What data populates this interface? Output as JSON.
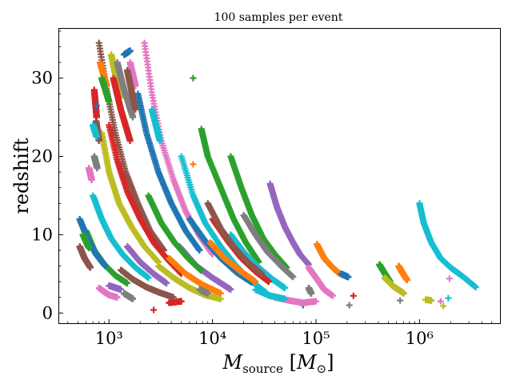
{
  "chart_data": {
    "type": "scatter",
    "title": "100 samples per event",
    "xlabel": "M_source [M_⊙]",
    "ylabel": "redshift",
    "xscale": "log",
    "xlim": [
      330,
      6000000
    ],
    "ylim": [
      -1.3,
      36.3
    ],
    "x_ticks": [
      {
        "value": 1000,
        "label": "10³"
      },
      {
        "value": 10000,
        "label": "10⁴"
      },
      {
        "value": 100000,
        "label": "10⁵"
      },
      {
        "value": 1000000,
        "label": "10⁶"
      }
    ],
    "y_ticks": [
      {
        "value": 0,
        "label": "0"
      },
      {
        "value": 10,
        "label": "10"
      },
      {
        "value": 20,
        "label": "20"
      },
      {
        "value": 30,
        "label": "30"
      }
    ],
    "grid": false,
    "legend": "none",
    "marker": "+",
    "samples_per_event": 100,
    "palette": [
      "#1f77b4",
      "#ff7f0e",
      "#2ca02c",
      "#d62728",
      "#9467bd",
      "#8c564b",
      "#e377c2",
      "#7f7f7f",
      "#bcbd22",
      "#17becf"
    ],
    "series": [
      {
        "color": "#17becf",
        "points": [
          [
            1000000,
            14.0
          ],
          [
            1100000,
            11.5
          ],
          [
            1300000,
            9.0
          ],
          [
            1600000,
            7.0
          ],
          [
            2000000,
            5.8
          ],
          [
            2600000,
            4.7
          ],
          [
            3500000,
            3.3
          ]
        ]
      },
      {
        "color": "#e377c2",
        "points": [
          [
            1950000,
            4.4
          ]
        ]
      },
      {
        "color": "#bcbd22",
        "points": [
          [
            1150000,
            1.7
          ],
          [
            1300000,
            1.6
          ]
        ]
      },
      {
        "color": "#17becf",
        "points": [
          [
            1900000,
            1.9
          ]
        ]
      },
      {
        "color": "#e377c2",
        "points": [
          [
            1600000,
            1.5
          ]
        ]
      },
      {
        "color": "#bcbd22",
        "points": [
          [
            1700000,
            0.9
          ]
        ]
      },
      {
        "color": "#ff7f0e",
        "points": [
          [
            630000,
            6.0
          ],
          [
            680000,
            5.2
          ],
          [
            760000,
            4.2
          ]
        ]
      },
      {
        "color": "#2ca02c",
        "points": [
          [
            410000,
            6.2
          ],
          [
            460000,
            5.1
          ],
          [
            520000,
            4.0
          ]
        ]
      },
      {
        "color": "#bcbd22",
        "points": [
          [
            460000,
            4.5
          ],
          [
            560000,
            3.4
          ],
          [
            710000,
            2.5
          ]
        ]
      },
      {
        "color": "#7f7f7f",
        "points": [
          [
            650000,
            1.6
          ]
        ]
      },
      {
        "color": "#9467bd",
        "points": [
          [
            36000,
            16.5
          ],
          [
            42000,
            13.5
          ],
          [
            50000,
            11.0
          ],
          [
            60000,
            9.0
          ],
          [
            70000,
            7.5
          ],
          [
            85000,
            6.2
          ]
        ]
      },
      {
        "color": "#ff7f0e",
        "points": [
          [
            102000,
            8.8
          ],
          [
            120000,
            7.0
          ],
          [
            145000,
            5.8
          ],
          [
            170000,
            5.0
          ]
        ]
      },
      {
        "color": "#1f77b4",
        "points": [
          [
            175000,
            5.0
          ],
          [
            205000,
            4.6
          ]
        ]
      },
      {
        "color": "#2ca02c",
        "points": [
          [
            15000,
            20.0
          ],
          [
            19000,
            16.0
          ],
          [
            24000,
            12.5
          ],
          [
            31000,
            9.5
          ],
          [
            40000,
            7.5
          ],
          [
            52000,
            5.8
          ]
        ]
      },
      {
        "color": "#2ca02c",
        "points": [
          [
            6500,
            30.0
          ]
        ]
      },
      {
        "color": "#2ca02c",
        "points": [
          [
            7800,
            23.5
          ],
          [
            9000,
            20.0
          ],
          [
            12000,
            16.0
          ],
          [
            16000,
            12.0
          ],
          [
            21000,
            9.0
          ],
          [
            28000,
            6.5
          ]
        ]
      },
      {
        "color": "#e377c2",
        "points": [
          [
            85000,
            5.8
          ],
          [
            100000,
            4.5
          ],
          [
            120000,
            3.0
          ],
          [
            145000,
            2.2
          ]
        ]
      },
      {
        "color": "#d62728",
        "points": [
          [
            230000,
            2.2
          ]
        ]
      },
      {
        "color": "#7f7f7f",
        "points": [
          [
            210000,
            1.0
          ]
        ]
      },
      {
        "color": "#7f7f7f",
        "points": [
          [
            85000,
            3.2
          ],
          [
            90000,
            2.5
          ]
        ]
      },
      {
        "color": "#1f77b4",
        "points": [
          [
            75000,
            1.0
          ]
        ]
      },
      {
        "color": "#17becf",
        "points": [
          [
            5000,
            20.0
          ],
          [
            6500,
            15.0
          ],
          [
            8500,
            11.5
          ],
          [
            12000,
            8.5
          ],
          [
            17000,
            6.0
          ],
          [
            24000,
            4.0
          ],
          [
            33000,
            2.6
          ]
        ]
      },
      {
        "color": "#e377c2",
        "points": [
          [
            2200,
            34.5
          ],
          [
            2600,
            28.0
          ],
          [
            3200,
            22.0
          ],
          [
            4200,
            17.0
          ],
          [
            5500,
            13.0
          ],
          [
            7500,
            9.8
          ],
          [
            10000,
            7.5
          ]
        ]
      },
      {
        "color": "#1f77b4",
        "points": [
          [
            1900,
            28.0
          ],
          [
            2300,
            23.0
          ],
          [
            3000,
            18.0
          ],
          [
            4000,
            14.0
          ],
          [
            5500,
            10.5
          ],
          [
            7500,
            8.0
          ]
        ]
      },
      {
        "color": "#8c564b",
        "points": [
          [
            800,
            34.5
          ],
          [
            950,
            28.5
          ],
          [
            1150,
            23.0
          ],
          [
            1450,
            18.0
          ],
          [
            1900,
            14.0
          ],
          [
            2500,
            10.5
          ],
          [
            3400,
            8.0
          ]
        ]
      },
      {
        "color": "#d62728",
        "points": [
          [
            1000,
            24.0
          ],
          [
            1200,
            19.5
          ],
          [
            1500,
            15.5
          ],
          [
            2000,
            12.0
          ],
          [
            2700,
            9.0
          ],
          [
            3700,
            6.8
          ],
          [
            5000,
            5.0
          ]
        ]
      },
      {
        "color": "#bcbd22",
        "points": [
          [
            850,
            23.0
          ],
          [
            1000,
            18.0
          ],
          [
            1250,
            14.0
          ],
          [
            1650,
            11.0
          ],
          [
            2200,
            8.5
          ],
          [
            3000,
            6.5
          ]
        ]
      },
      {
        "color": "#17becf",
        "points": [
          [
            700,
            15.0
          ],
          [
            850,
            12.0
          ],
          [
            1050,
            9.5
          ],
          [
            1350,
            7.5
          ],
          [
            1800,
            5.8
          ],
          [
            2400,
            4.5
          ]
        ]
      },
      {
        "color": "#2ca02c",
        "points": [
          [
            600,
            10.5
          ],
          [
            720,
            8.0
          ],
          [
            900,
            6.2
          ],
          [
            1150,
            4.8
          ],
          [
            1500,
            3.8
          ]
        ]
      },
      {
        "color": "#e377c2",
        "points": [
          [
            800,
            3.2
          ],
          [
            900,
            2.7
          ],
          [
            1000,
            2.3
          ],
          [
            1200,
            2.0
          ]
        ]
      },
      {
        "color": "#7f7f7f",
        "points": [
          [
            1400,
            2.5
          ],
          [
            1700,
            1.8
          ]
        ]
      },
      {
        "color": "#d62728",
        "points": [
          [
            2700,
            0.4
          ]
        ]
      },
      {
        "color": "#ff7f0e",
        "points": [
          [
            3800,
            7.0
          ],
          [
            5500,
            5.0
          ],
          [
            8000,
            3.6
          ],
          [
            12000,
            2.5
          ]
        ]
      },
      {
        "color": "#9467bd",
        "points": [
          [
            4800,
            8.5
          ],
          [
            7000,
            6.0
          ],
          [
            10000,
            4.5
          ],
          [
            15000,
            3.0
          ]
        ]
      },
      {
        "color": "#17becf",
        "points": [
          [
            15000,
            10.0
          ],
          [
            20000,
            7.8
          ],
          [
            28000,
            5.8
          ],
          [
            38000,
            4.3
          ],
          [
            50000,
            3.2
          ]
        ]
      },
      {
        "color": "#d62728",
        "points": [
          [
            10000,
            12.0
          ],
          [
            14000,
            9.2
          ],
          [
            19000,
            7.0
          ],
          [
            26000,
            5.3
          ],
          [
            35000,
            4.0
          ]
        ]
      },
      {
        "color": "#7f7f7f",
        "points": [
          [
            20000,
            12.5
          ],
          [
            26000,
            10.0
          ],
          [
            34000,
            7.8
          ],
          [
            46000,
            6.0
          ],
          [
            60000,
            4.6
          ]
        ]
      },
      {
        "color": "#8c564b",
        "points": [
          [
            9000,
            14.0
          ],
          [
            12000,
            10.8
          ],
          [
            16000,
            8.5
          ],
          [
            22000,
            6.5
          ],
          [
            30000,
            5.0
          ]
        ]
      },
      {
        "color": "#bcbd22",
        "points": [
          [
            3000,
            6.0
          ],
          [
            4200,
            4.5
          ],
          [
            6000,
            3.2
          ],
          [
            8500,
            2.3
          ],
          [
            12000,
            1.8
          ]
        ]
      },
      {
        "color": "#1f77b4",
        "points": [
          [
            6000,
            12.0
          ],
          [
            8500,
            9.2
          ],
          [
            12000,
            7.0
          ],
          [
            17000,
            5.2
          ],
          [
            24000,
            3.9
          ]
        ]
      },
      {
        "color": "#ff7f0e",
        "points": [
          [
            6500,
            19.0
          ]
        ]
      },
      {
        "color": "#ff7f0e",
        "points": [
          [
            9500,
            9.0
          ],
          [
            13000,
            7.0
          ],
          [
            18000,
            5.5
          ],
          [
            26000,
            4.0
          ]
        ]
      },
      {
        "color": "#e377c2",
        "points": [
          [
            40000,
            2.0
          ],
          [
            55000,
            1.6
          ],
          [
            75000,
            1.3
          ],
          [
            100000,
            1.5
          ]
        ]
      },
      {
        "color": "#17becf",
        "points": [
          [
            26000,
            3.0
          ],
          [
            36000,
            2.2
          ],
          [
            50000,
            1.8
          ]
        ]
      },
      {
        "color": "#8c564b",
        "points": [
          [
            1300,
            5.5
          ],
          [
            1700,
            4.3
          ],
          [
            2300,
            3.3
          ],
          [
            3100,
            2.6
          ],
          [
            4200,
            2.0
          ]
        ]
      },
      {
        "color": "#9467bd",
        "points": [
          [
            1500,
            8.5
          ],
          [
            2000,
            6.5
          ],
          [
            2700,
            5.0
          ],
          [
            3600,
            3.8
          ]
        ]
      },
      {
        "color": "#2ca02c",
        "points": [
          [
            2400,
            15.0
          ],
          [
            3200,
            11.5
          ],
          [
            4300,
            9.0
          ],
          [
            5800,
            7.0
          ],
          [
            7800,
            5.4
          ]
        ]
      },
      {
        "color": "#1f77b4",
        "points": [
          [
            520,
            12.0
          ],
          [
            620,
            9.5
          ],
          [
            750,
            7.5
          ],
          [
            920,
            6.0
          ]
        ]
      },
      {
        "color": "#8c564b",
        "points": [
          [
            520,
            8.5
          ],
          [
            580,
            7.0
          ],
          [
            660,
            5.8
          ]
        ]
      },
      {
        "color": "#2ca02c",
        "points": [
          [
            560,
            10.0
          ],
          [
            640,
            8.3
          ]
        ]
      },
      {
        "color": "#d62728",
        "points": [
          [
            720,
            28.5
          ],
          [
            760,
            25.0
          ]
        ]
      },
      {
        "color": "#8c564b",
        "points": [
          [
            750,
            24.5
          ],
          [
            800,
            22.0
          ]
        ]
      },
      {
        "color": "#1f77b4",
        "points": [
          [
            760,
            26.5
          ]
        ]
      },
      {
        "color": "#17becf",
        "points": [
          [
            700,
            24.0
          ],
          [
            760,
            22.5
          ]
        ]
      },
      {
        "color": "#e377c2",
        "points": [
          [
            640,
            18.5
          ],
          [
            680,
            17.0
          ]
        ]
      },
      {
        "color": "#7f7f7f",
        "points": [
          [
            720,
            20.0
          ],
          [
            770,
            18.5
          ]
        ]
      },
      {
        "color": "#bcbd22",
        "points": [
          [
            1050,
            33.0
          ],
          [
            1150,
            30.5
          ],
          [
            1300,
            27.5
          ]
        ]
      },
      {
        "color": "#1f77b4",
        "points": [
          [
            1400,
            33.0
          ],
          [
            1600,
            33.5
          ]
        ]
      },
      {
        "color": "#ff7f0e",
        "points": [
          [
            820,
            32.0
          ],
          [
            950,
            29.0
          ]
        ]
      },
      {
        "color": "#2ca02c",
        "points": [
          [
            850,
            30.0
          ],
          [
            1000,
            27.0
          ]
        ]
      },
      {
        "color": "#d62728",
        "points": [
          [
            1100,
            30.0
          ],
          [
            1300,
            26.0
          ],
          [
            1600,
            22.0
          ]
        ]
      },
      {
        "color": "#e377c2",
        "points": [
          [
            1600,
            32.0
          ],
          [
            1800,
            29.0
          ]
        ]
      },
      {
        "color": "#7f7f7f",
        "points": [
          [
            1200,
            32.0
          ],
          [
            1400,
            28.5
          ],
          [
            1700,
            25.0
          ]
        ]
      },
      {
        "color": "#8c564b",
        "points": [
          [
            1500,
            31.0
          ],
          [
            1800,
            26.0
          ]
        ]
      },
      {
        "color": "#17becf",
        "points": [
          [
            2600,
            26.0
          ],
          [
            3100,
            22.0
          ]
        ]
      },
      {
        "color": "#9467bd",
        "points": [
          [
            1000,
            3.5
          ],
          [
            1300,
            3.0
          ]
        ]
      },
      {
        "color": "#d62728",
        "points": [
          [
            3800,
            1.3
          ],
          [
            5000,
            1.5
          ]
        ]
      },
      {
        "color": "#7f7f7f",
        "points": [
          [
            7500,
            3.0
          ],
          [
            9000,
            2.5
          ]
        ]
      }
    ]
  }
}
